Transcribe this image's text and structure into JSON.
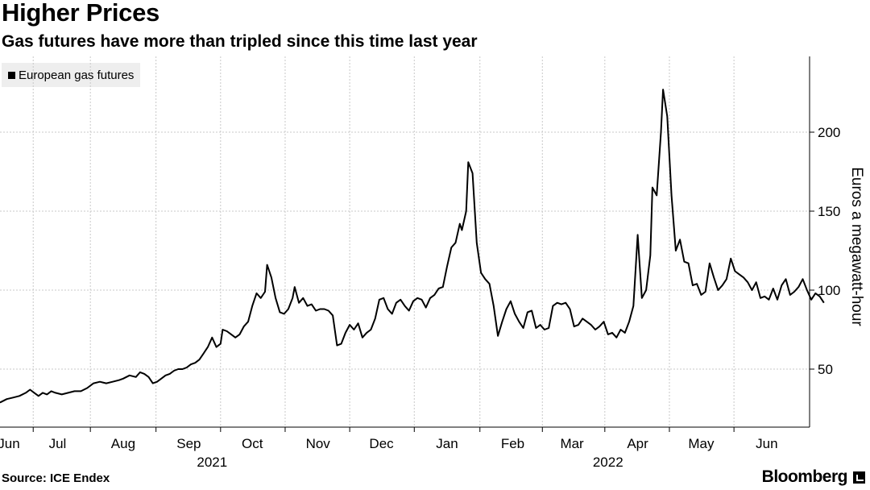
{
  "header": {
    "title": "Higher Prices",
    "subtitle": "Gas futures have more than tripled since this time last year"
  },
  "legend": {
    "label": "European gas futures"
  },
  "footer": {
    "source": "Source: ICE Endex",
    "brand": "Bloomberg"
  },
  "colors": {
    "line": "#000000",
    "grid": "#c8c8c8",
    "legend_bg": "#eeeeee"
  },
  "chart_data": {
    "type": "line",
    "title": "Higher Prices",
    "subtitle": "Gas futures have more than tripled since this time last year",
    "ylabel": "Euros a megawatt-hour",
    "xlabel": "",
    "ylim": [
      20,
      245
    ],
    "yticks": [
      50,
      100,
      150,
      200
    ],
    "grid": true,
    "legend_position": "top-left",
    "month_ticks": [
      {
        "label": "Jun",
        "day": 0
      },
      {
        "label": "Jul",
        "day": 23
      },
      {
        "label": "Aug",
        "day": 54
      },
      {
        "label": "Sep",
        "day": 85
      },
      {
        "label": "Oct",
        "day": 115
      },
      {
        "label": "Nov",
        "day": 146
      },
      {
        "label": "Dec",
        "day": 176
      },
      {
        "label": "Jan",
        "day": 207
      },
      {
        "label": "Feb",
        "day": 238
      },
      {
        "label": "Mar",
        "day": 266
      },
      {
        "label": "Apr",
        "day": 297
      },
      {
        "label": "May",
        "day": 327
      },
      {
        "label": "Jun",
        "day": 358
      }
    ],
    "year_labels": [
      {
        "label": "2021",
        "day": 96
      },
      {
        "label": "2022",
        "day": 283
      }
    ],
    "x_domain": [
      -8,
      385
    ],
    "series": [
      {
        "name": "European gas futures",
        "points": [
          [
            -8,
            28
          ],
          [
            -4,
            29
          ],
          [
            -1,
            31
          ],
          [
            2,
            32
          ],
          [
            5,
            33
          ],
          [
            8,
            35
          ],
          [
            10,
            37
          ],
          [
            12,
            35
          ],
          [
            14,
            33
          ],
          [
            16,
            35
          ],
          [
            18,
            34
          ],
          [
            20,
            36
          ],
          [
            22,
            35
          ],
          [
            25,
            34
          ],
          [
            28,
            35
          ],
          [
            31,
            36
          ],
          [
            34,
            36
          ],
          [
            37,
            38
          ],
          [
            40,
            41
          ],
          [
            43,
            42
          ],
          [
            46,
            41
          ],
          [
            49,
            42
          ],
          [
            52,
            43
          ],
          [
            54,
            44
          ],
          [
            57,
            46
          ],
          [
            60,
            45
          ],
          [
            62,
            48
          ],
          [
            64,
            47
          ],
          [
            66,
            45
          ],
          [
            68,
            41
          ],
          [
            70,
            42
          ],
          [
            72,
            44
          ],
          [
            74,
            46
          ],
          [
            76,
            47
          ],
          [
            78,
            49
          ],
          [
            80,
            50
          ],
          [
            82,
            50
          ],
          [
            84,
            51
          ],
          [
            86,
            53
          ],
          [
            88,
            54
          ],
          [
            90,
            56
          ],
          [
            92,
            60
          ],
          [
            94,
            64
          ],
          [
            96,
            70
          ],
          [
            98,
            64
          ],
          [
            100,
            66
          ],
          [
            101,
            75
          ],
          [
            103,
            74
          ],
          [
            105,
            72
          ],
          [
            107,
            70
          ],
          [
            109,
            72
          ],
          [
            111,
            77
          ],
          [
            113,
            80
          ],
          [
            115,
            90
          ],
          [
            117,
            98
          ],
          [
            119,
            95
          ],
          [
            121,
            99
          ],
          [
            122,
            116
          ],
          [
            124,
            108
          ],
          [
            126,
            95
          ],
          [
            128,
            86
          ],
          [
            130,
            85
          ],
          [
            132,
            88
          ],
          [
            134,
            95
          ],
          [
            135,
            102
          ],
          [
            137,
            92
          ],
          [
            139,
            95
          ],
          [
            141,
            90
          ],
          [
            143,
            91
          ],
          [
            145,
            87
          ],
          [
            147,
            88
          ],
          [
            149,
            88
          ],
          [
            151,
            87
          ],
          [
            153,
            84
          ],
          [
            155,
            65
          ],
          [
            157,
            66
          ],
          [
            159,
            73
          ],
          [
            161,
            78
          ],
          [
            163,
            75
          ],
          [
            165,
            79
          ],
          [
            167,
            70
          ],
          [
            169,
            73
          ],
          [
            171,
            75
          ],
          [
            173,
            82
          ],
          [
            175,
            94
          ],
          [
            177,
            95
          ],
          [
            179,
            88
          ],
          [
            181,
            85
          ],
          [
            183,
            92
          ],
          [
            185,
            94
          ],
          [
            187,
            90
          ],
          [
            189,
            87
          ],
          [
            191,
            93
          ],
          [
            193,
            95
          ],
          [
            195,
            94
          ],
          [
            197,
            89
          ],
          [
            199,
            95
          ],
          [
            201,
            97
          ],
          [
            203,
            101
          ],
          [
            205,
            102
          ],
          [
            207,
            115
          ],
          [
            209,
            127
          ],
          [
            211,
            130
          ],
          [
            213,
            142
          ],
          [
            214,
            138
          ],
          [
            216,
            150
          ],
          [
            217,
            181
          ],
          [
            219,
            174
          ],
          [
            221,
            130
          ],
          [
            223,
            111
          ],
          [
            225,
            107
          ],
          [
            227,
            104
          ],
          [
            229,
            90
          ],
          [
            231,
            71
          ],
          [
            233,
            80
          ],
          [
            235,
            88
          ],
          [
            237,
            93
          ],
          [
            239,
            85
          ],
          [
            241,
            80
          ],
          [
            243,
            76
          ],
          [
            245,
            86
          ],
          [
            247,
            87
          ],
          [
            249,
            76
          ],
          [
            251,
            78
          ],
          [
            253,
            75
          ],
          [
            255,
            76
          ],
          [
            257,
            90
          ],
          [
            259,
            92
          ],
          [
            261,
            91
          ],
          [
            263,
            92
          ],
          [
            265,
            88
          ],
          [
            267,
            77
          ],
          [
            269,
            78
          ],
          [
            271,
            82
          ],
          [
            273,
            80
          ],
          [
            275,
            78
          ],
          [
            277,
            75
          ],
          [
            279,
            77
          ],
          [
            281,
            80
          ],
          [
            283,
            72
          ],
          [
            285,
            73
          ],
          [
            287,
            70
          ],
          [
            289,
            75
          ],
          [
            291,
            73
          ],
          [
            293,
            80
          ],
          [
            295,
            90
          ],
          [
            297,
            135
          ],
          [
            299,
            95
          ],
          [
            301,
            100
          ],
          [
            303,
            122
          ],
          [
            304,
            165
          ],
          [
            306,
            160
          ],
          [
            308,
            200
          ],
          [
            309,
            227
          ],
          [
            311,
            210
          ],
          [
            313,
            160
          ],
          [
            315,
            125
          ],
          [
            317,
            132
          ],
          [
            319,
            118
          ],
          [
            321,
            117
          ],
          [
            323,
            103
          ],
          [
            325,
            104
          ],
          [
            327,
            97
          ],
          [
            329,
            99
          ],
          [
            331,
            117
          ],
          [
            333,
            108
          ],
          [
            335,
            100
          ],
          [
            337,
            103
          ],
          [
            339,
            107
          ],
          [
            341,
            120
          ],
          [
            343,
            112
          ],
          [
            345,
            110
          ],
          [
            347,
            108
          ],
          [
            349,
            105
          ],
          [
            351,
            100
          ],
          [
            353,
            105
          ],
          [
            355,
            95
          ],
          [
            357,
            96
          ],
          [
            359,
            94
          ],
          [
            361,
            101
          ],
          [
            363,
            94
          ],
          [
            365,
            103
          ],
          [
            367,
            107
          ],
          [
            369,
            97
          ],
          [
            371,
            99
          ],
          [
            373,
            102
          ],
          [
            375,
            107
          ],
          [
            377,
            100
          ],
          [
            379,
            94
          ],
          [
            381,
            98
          ],
          [
            383,
            96
          ],
          [
            385,
            92
          ]
        ]
      }
    ]
  }
}
